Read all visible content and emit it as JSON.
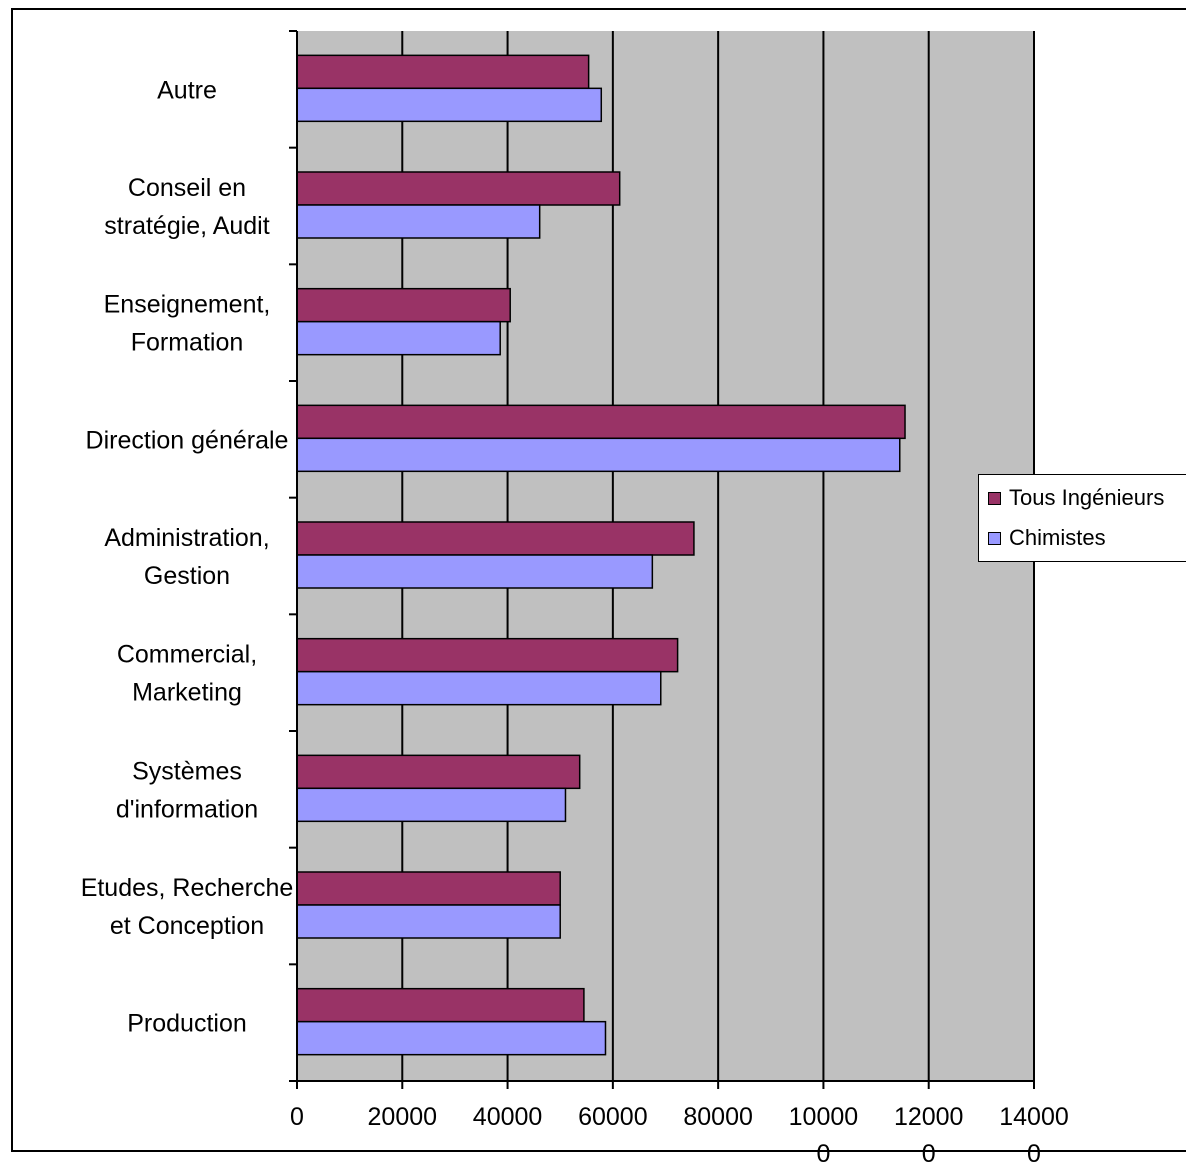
{
  "chart_data": {
    "type": "bar",
    "orientation": "horizontal",
    "categories": [
      "Production",
      "Etudes, Recherche et Conception",
      "Systèmes d'information",
      "Commercial, Marketing",
      "Administration, Gestion",
      "Direction générale",
      "Enseignement, Formation",
      "Conseil en stratégie, Audit",
      "Autre"
    ],
    "category_label_lines": [
      [
        "Production"
      ],
      [
        "Etudes, Recherche",
        "et Conception"
      ],
      [
        "Systèmes",
        "d'information"
      ],
      [
        "Commercial,",
        "Marketing"
      ],
      [
        "Administration,",
        "Gestion"
      ],
      [
        "Direction générale"
      ],
      [
        "Enseignement,",
        "Formation"
      ],
      [
        "Conseil en",
        "stratégie, Audit"
      ],
      [
        "Autre"
      ]
    ],
    "series": [
      {
        "name": "Tous Ingénieurs",
        "color": "#993366",
        "values": [
          54500,
          50000,
          53700,
          72300,
          75400,
          115500,
          40500,
          61300,
          55400
        ]
      },
      {
        "name": "Chimistes",
        "color": "#9999ff",
        "values": [
          58600,
          50000,
          51000,
          69100,
          67500,
          114500,
          38600,
          46100,
          57800
        ]
      }
    ],
    "xlim": [
      0,
      140000
    ],
    "tick_values": [
      0,
      20000,
      40000,
      60000,
      80000,
      100000,
      120000,
      140000
    ],
    "tick_label_lines": [
      [
        "0"
      ],
      [
        "20000"
      ],
      [
        "40000"
      ],
      [
        "60000"
      ],
      [
        "80000"
      ],
      [
        "10000",
        "0"
      ],
      [
        "12000",
        "0"
      ],
      [
        "14000",
        "0"
      ]
    ],
    "plot_background": "#c0c0c0",
    "grid": true,
    "legend_position": "right"
  }
}
